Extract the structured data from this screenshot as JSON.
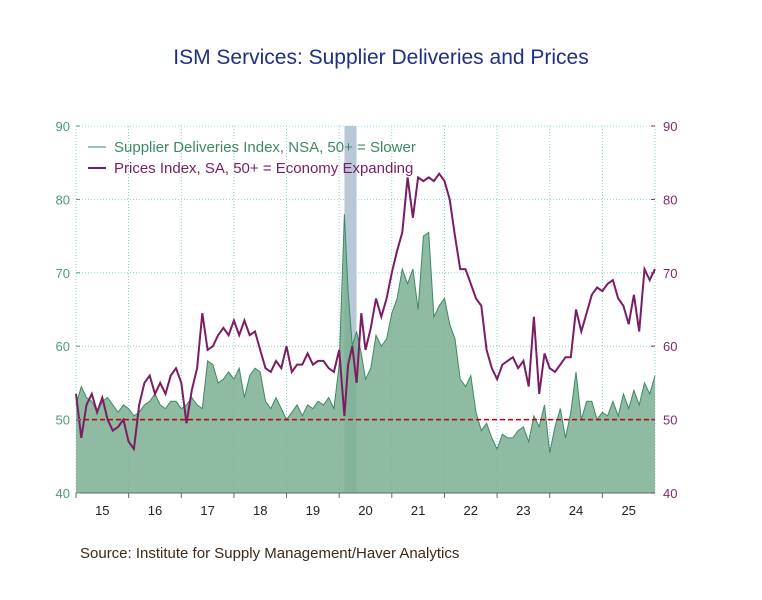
{
  "title": "ISM Services: Supplier Deliveries and Prices",
  "source": "Source:  Institute for Supply Management/Haver Analytics",
  "chart_data": {
    "type": "area",
    "title": "ISM Services: Supplier Deliveries and Prices",
    "xlabel": "",
    "ylabel": "",
    "ylim": [
      40,
      90
    ],
    "y_ticks": [
      40,
      50,
      60,
      70,
      80,
      90
    ],
    "y2_ticks": [
      40,
      50,
      60,
      70,
      80,
      90
    ],
    "x_tick_labels": [
      "15",
      "16",
      "17",
      "18",
      "19",
      "20",
      "21",
      "22",
      "23",
      "24",
      "25"
    ],
    "x_range": [
      2015.0,
      2026.0
    ],
    "reference_line": 50,
    "recession_shade": [
      2020.1,
      2020.33
    ],
    "grid": true,
    "legend": "top-left",
    "colors": {
      "deliveries": "#7aaf90",
      "deliveries_line": "#3d8a63",
      "prices": "#7b1d62",
      "reference": "#c00000",
      "shade": "#b8c8d8"
    },
    "series": [
      {
        "name": "Supplier Deliveries Index, NSA, 50+ = Slower",
        "type": "area",
        "x": [
          2015.0,
          2015.1,
          2015.2,
          2015.3,
          2015.4,
          2015.5,
          2015.6,
          2015.7,
          2015.8,
          2015.9,
          2016.0,
          2016.1,
          2016.2,
          2016.3,
          2016.4,
          2016.5,
          2016.6,
          2016.7,
          2016.8,
          2016.9,
          2017.0,
          2017.1,
          2017.2,
          2017.3,
          2017.4,
          2017.5,
          2017.6,
          2017.7,
          2017.8,
          2017.9,
          2018.0,
          2018.1,
          2018.2,
          2018.3,
          2018.4,
          2018.5,
          2018.6,
          2018.7,
          2018.8,
          2018.9,
          2019.0,
          2019.1,
          2019.2,
          2019.3,
          2019.4,
          2019.5,
          2019.6,
          2019.7,
          2019.8,
          2019.9,
          2020.0,
          2020.1,
          2020.17,
          2020.25,
          2020.33,
          2020.42,
          2020.5,
          2020.6,
          2020.7,
          2020.8,
          2020.9,
          2021.0,
          2021.1,
          2021.2,
          2021.3,
          2021.4,
          2021.5,
          2021.6,
          2021.7,
          2021.8,
          2021.9,
          2022.0,
          2022.1,
          2022.2,
          2022.3,
          2022.4,
          2022.5,
          2022.6,
          2022.7,
          2022.8,
          2022.9,
          2023.0,
          2023.1,
          2023.2,
          2023.3,
          2023.4,
          2023.5,
          2023.6,
          2023.7,
          2023.8,
          2023.9,
          2024.0,
          2024.1,
          2024.2,
          2024.3,
          2024.4,
          2024.5,
          2024.6,
          2024.7,
          2024.8,
          2024.9,
          2025.0,
          2025.1,
          2025.2,
          2025.3,
          2025.4,
          2025.5,
          2025.6,
          2025.7,
          2025.8,
          2025.9,
          2026.0
        ],
        "values": [
          52.0,
          54.5,
          53.0,
          52.5,
          51.0,
          52.5,
          53.0,
          52.0,
          51.0,
          52.0,
          51.5,
          50.5,
          51.0,
          52.0,
          52.5,
          53.5,
          52.0,
          51.5,
          52.5,
          52.5,
          51.5,
          52.0,
          53.0,
          52.0,
          51.5,
          58.0,
          57.5,
          55.0,
          55.5,
          56.5,
          55.5,
          57.0,
          53.0,
          56.0,
          57.0,
          56.5,
          52.5,
          51.5,
          53.0,
          51.5,
          50.0,
          51.0,
          52.0,
          50.5,
          52.0,
          51.5,
          52.5,
          52.0,
          53.0,
          51.5,
          57.5,
          78.0,
          67.5,
          60.0,
          62.0,
          59.0,
          55.5,
          57.0,
          61.5,
          60.0,
          61.0,
          64.5,
          66.5,
          70.5,
          68.5,
          70.5,
          65.0,
          75.0,
          75.5,
          64.0,
          65.5,
          66.5,
          63.0,
          61.0,
          55.5,
          54.5,
          56.0,
          51.0,
          48.5,
          49.5,
          47.5,
          46.0,
          48.0,
          47.5,
          47.5,
          48.5,
          49.0,
          47.0,
          50.5,
          49.0,
          52.0,
          45.5,
          49.0,
          51.5,
          47.5,
          51.0,
          56.5,
          50.0,
          52.5,
          52.5,
          50.0,
          51.0,
          50.5,
          52.5,
          50.5,
          53.5,
          51.5,
          54.0,
          52.0,
          55.0,
          53.5,
          56.0
        ]
      },
      {
        "name": "Prices Index, SA, 50+ = Economy Expanding",
        "type": "line",
        "x": [
          2015.0,
          2015.1,
          2015.2,
          2015.3,
          2015.4,
          2015.5,
          2015.6,
          2015.7,
          2015.8,
          2015.9,
          2016.0,
          2016.1,
          2016.2,
          2016.3,
          2016.4,
          2016.5,
          2016.6,
          2016.7,
          2016.8,
          2016.9,
          2017.0,
          2017.1,
          2017.2,
          2017.3,
          2017.4,
          2017.5,
          2017.6,
          2017.7,
          2017.8,
          2017.9,
          2018.0,
          2018.1,
          2018.2,
          2018.3,
          2018.4,
          2018.5,
          2018.6,
          2018.7,
          2018.8,
          2018.9,
          2019.0,
          2019.1,
          2019.2,
          2019.3,
          2019.4,
          2019.5,
          2019.6,
          2019.7,
          2019.8,
          2019.9,
          2020.0,
          2020.1,
          2020.17,
          2020.25,
          2020.33,
          2020.42,
          2020.5,
          2020.6,
          2020.7,
          2020.8,
          2020.9,
          2021.0,
          2021.1,
          2021.2,
          2021.3,
          2021.4,
          2021.5,
          2021.6,
          2021.7,
          2021.8,
          2021.9,
          2022.0,
          2022.1,
          2022.2,
          2022.3,
          2022.4,
          2022.5,
          2022.6,
          2022.7,
          2022.8,
          2022.9,
          2023.0,
          2023.1,
          2023.2,
          2023.3,
          2023.4,
          2023.5,
          2023.6,
          2023.7,
          2023.8,
          2023.9,
          2024.0,
          2024.1,
          2024.2,
          2024.3,
          2024.4,
          2024.5,
          2024.6,
          2024.7,
          2024.8,
          2024.9,
          2025.0,
          2025.1,
          2025.2,
          2025.3,
          2025.4,
          2025.5,
          2025.6,
          2025.7,
          2025.8,
          2025.9,
          2026.0
        ],
        "values": [
          53.5,
          47.5,
          52.0,
          53.5,
          51.0,
          53.0,
          50.0,
          48.5,
          49.0,
          50.0,
          47.0,
          46.0,
          52.0,
          55.0,
          56.0,
          53.5,
          55.0,
          53.5,
          56.0,
          57.0,
          55.0,
          49.5,
          54.0,
          57.0,
          64.5,
          59.5,
          60.0,
          61.5,
          62.5,
          61.5,
          63.5,
          61.5,
          63.5,
          61.5,
          62.0,
          59.5,
          57.0,
          56.5,
          58.0,
          57.0,
          60.0,
          56.5,
          57.5,
          57.5,
          59.0,
          57.5,
          58.0,
          58.0,
          57.0,
          56.5,
          59.5,
          50.5,
          57.5,
          60.0,
          55.0,
          64.5,
          59.5,
          62.5,
          66.5,
          64.0,
          66.5,
          70.0,
          73.0,
          75.5,
          83.0,
          77.5,
          83.0,
          82.5,
          83.0,
          82.5,
          83.5,
          82.5,
          80.0,
          75.0,
          70.5,
          70.5,
          68.5,
          66.5,
          65.5,
          59.5,
          57.0,
          55.5,
          57.5,
          58.0,
          58.5,
          57.0,
          58.0,
          54.5,
          64.0,
          53.5,
          59.0,
          57.0,
          56.5,
          57.5,
          58.5,
          58.5,
          65.0,
          62.0,
          64.5,
          67.0,
          68.0,
          67.5,
          68.5,
          69.0,
          66.5,
          65.5,
          63.0,
          67.0,
          62.0,
          70.5,
          69.0,
          70.5
        ]
      }
    ]
  }
}
